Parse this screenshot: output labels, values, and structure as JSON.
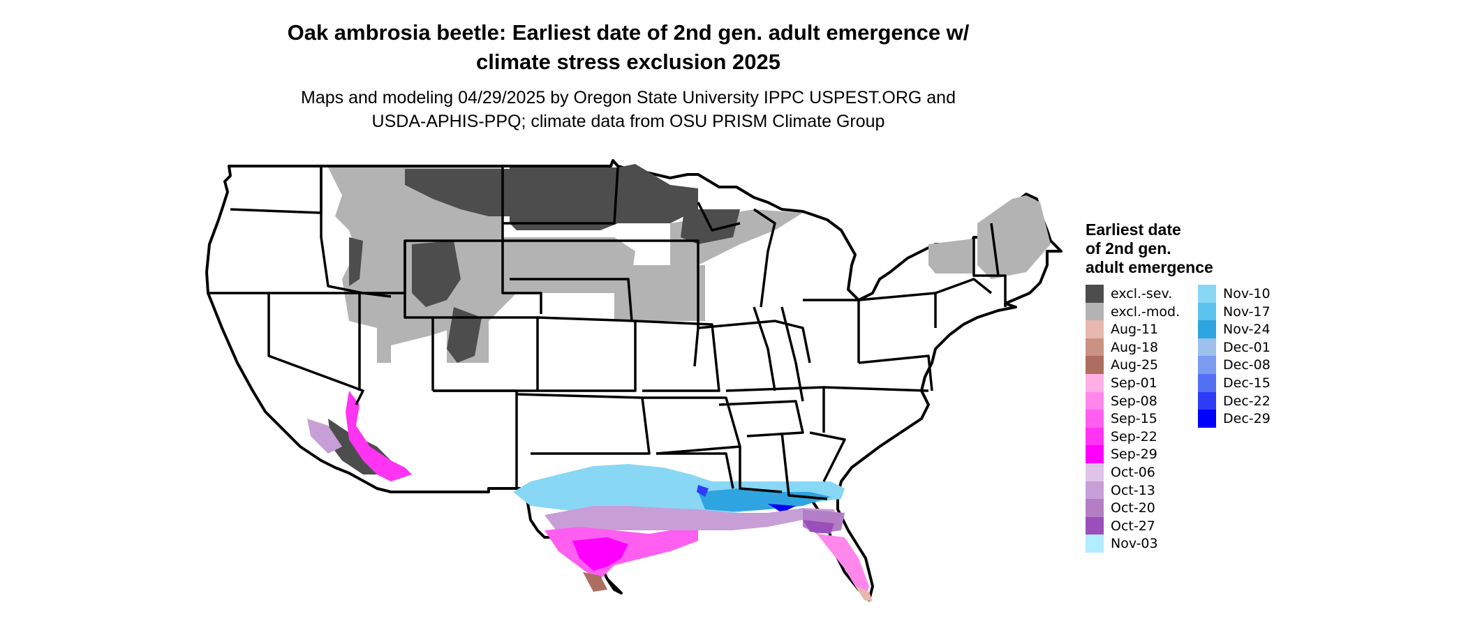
{
  "title_line1": "Oak ambrosia beetle: Earliest date of 2nd gen. adult emergence w/",
  "title_line2": "climate stress exclusion 2025",
  "subtitle_line1": "Maps and modeling 04/29/2025 by Oregon State University IPPC USPEST.ORG and",
  "subtitle_line2": "USDA-APHIS-PPQ; climate data from OSU PRISM Climate Group",
  "legend": {
    "title_line1": "Earliest date",
    "title_line2": "of 2nd gen.",
    "title_line3": "adult emergence",
    "items": [
      {
        "label": "excl.-sev.",
        "color": "#4d4d4d"
      },
      {
        "label": "excl.-mod.",
        "color": "#b3b3b3"
      },
      {
        "label": "Aug-11",
        "color": "#e6b8ae"
      },
      {
        "label": "Aug-18",
        "color": "#c99283"
      },
      {
        "label": "Aug-25",
        "color": "#ad6e5f"
      },
      {
        "label": "Sep-01",
        "color": "#ffaee6"
      },
      {
        "label": "Sep-08",
        "color": "#ff87ec"
      },
      {
        "label": "Sep-15",
        "color": "#ff5ef0"
      },
      {
        "label": "Sep-22",
        "color": "#ff33f2"
      },
      {
        "label": "Sep-29",
        "color": "#ff00ff"
      },
      {
        "label": "Oct-06",
        "color": "#dfc3e8"
      },
      {
        "label": "Oct-13",
        "color": "#c89ed6"
      },
      {
        "label": "Oct-20",
        "color": "#b47ec6"
      },
      {
        "label": "Oct-27",
        "color": "#9a4fbb"
      },
      {
        "label": "Nov-03",
        "color": "#b3ebff"
      },
      {
        "label": "Nov-10",
        "color": "#88d7f5"
      },
      {
        "label": "Nov-17",
        "color": "#5cc2ee"
      },
      {
        "label": "Nov-24",
        "color": "#2ea4e0"
      },
      {
        "label": "Dec-01",
        "color": "#9dc0ec"
      },
      {
        "label": "Dec-08",
        "color": "#7b9af0"
      },
      {
        "label": "Dec-15",
        "color": "#5470f5"
      },
      {
        "label": "Dec-22",
        "color": "#2e3cf8"
      },
      {
        "label": "Dec-29",
        "color": "#0000ff"
      }
    ]
  }
}
